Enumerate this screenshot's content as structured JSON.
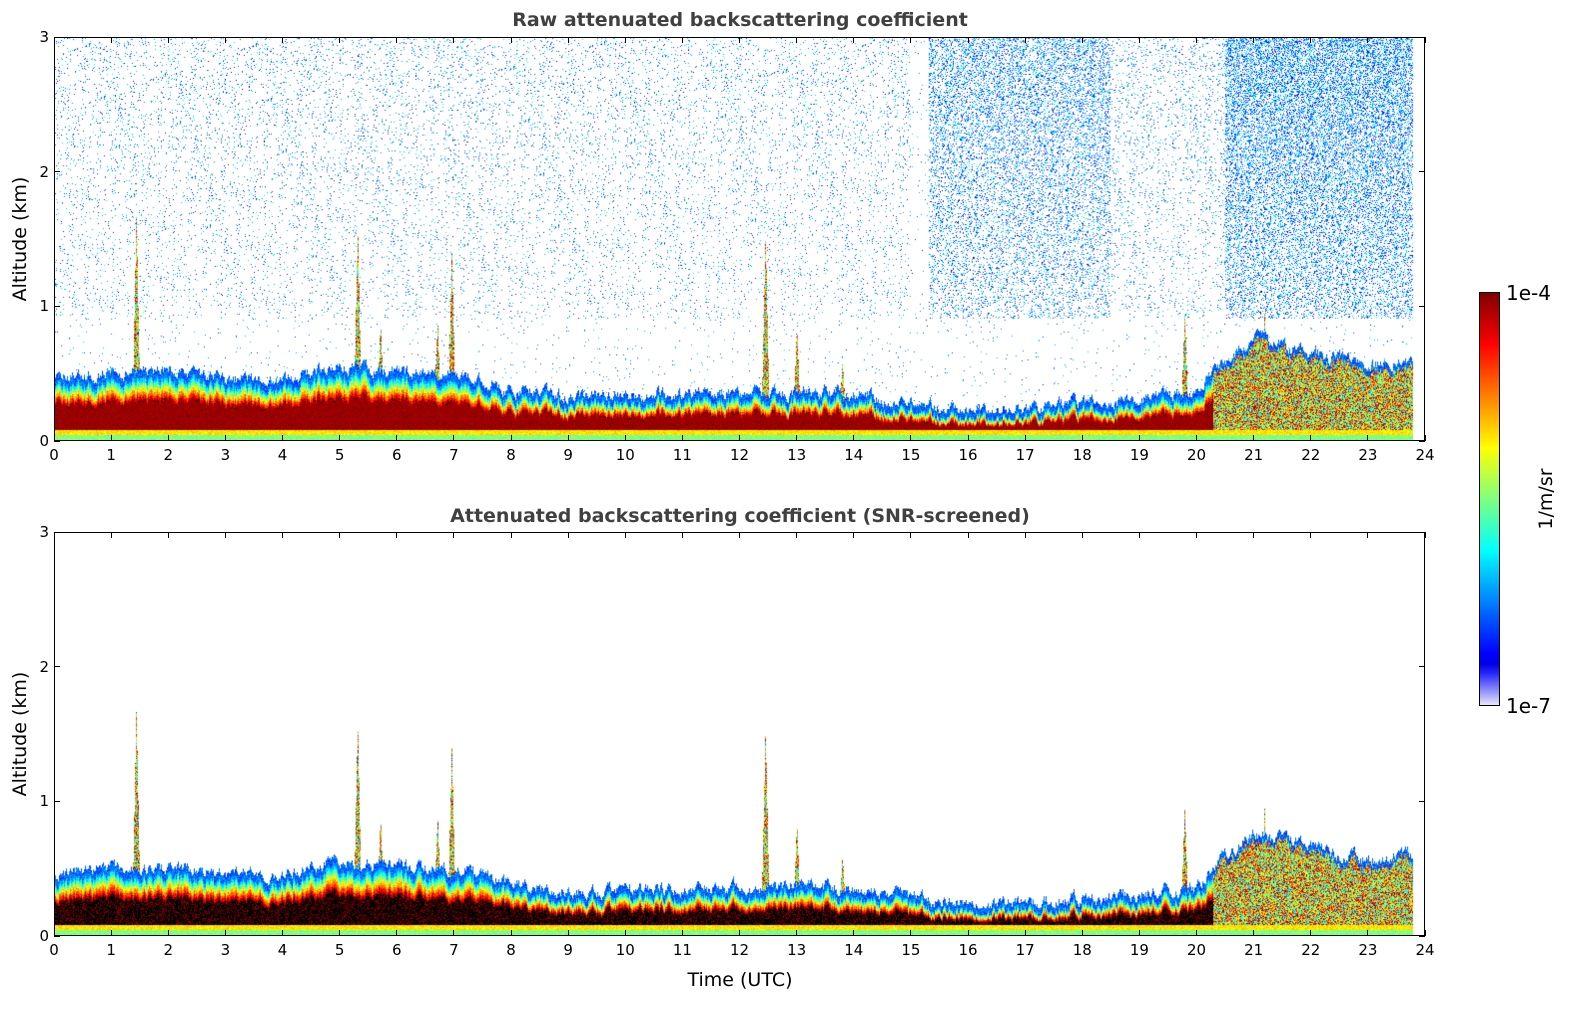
{
  "chart_data": [
    {
      "type": "heatmap",
      "title": "Raw attenuated backscattering coefficient",
      "xlabel": "",
      "ylabel": "Altitude (km)",
      "xlim": [
        0,
        24
      ],
      "ylim": [
        0,
        3
      ],
      "xticks": [
        "0",
        "1",
        "2",
        "3",
        "4",
        "5",
        "6",
        "7",
        "8",
        "9",
        "10",
        "11",
        "12",
        "13",
        "14",
        "15",
        "16",
        "17",
        "18",
        "19",
        "20",
        "21",
        "22",
        "23",
        "24"
      ],
      "yticks": [
        "0",
        "1",
        "2",
        "3"
      ],
      "screened": false
    },
    {
      "type": "heatmap",
      "title": "Attenuated backscattering coefficient (SNR-screened)",
      "xlabel": "Time (UTC)",
      "ylabel": "Altitude (km)",
      "xlim": [
        0,
        24
      ],
      "ylim": [
        0,
        3
      ],
      "xticks": [
        "0",
        "1",
        "2",
        "3",
        "4",
        "5",
        "6",
        "7",
        "8",
        "9",
        "10",
        "11",
        "12",
        "13",
        "14",
        "15",
        "16",
        "17",
        "18",
        "19",
        "20",
        "21",
        "22",
        "23",
        "24"
      ],
      "yticks": [
        "0",
        "1",
        "2",
        "3"
      ],
      "screened": true
    }
  ],
  "aerosol_layer": {
    "time_h": [
      0,
      1,
      2,
      3,
      4,
      5,
      6,
      7,
      8,
      9,
      10,
      11,
      12,
      13,
      14,
      15,
      16,
      17,
      18,
      19,
      20,
      20.5,
      21,
      22,
      23,
      23.8
    ],
    "top_km": [
      0.4,
      0.45,
      0.45,
      0.4,
      0.4,
      0.5,
      0.45,
      0.45,
      0.32,
      0.28,
      0.28,
      0.3,
      0.3,
      0.3,
      0.3,
      0.22,
      0.18,
      0.18,
      0.22,
      0.25,
      0.3,
      0.55,
      0.7,
      0.6,
      0.5,
      0.55
    ],
    "data_end_h": 23.8,
    "plumes": [
      {
        "t": 1.42,
        "top": 1.7
      },
      {
        "t": 5.3,
        "top": 1.6
      },
      {
        "t": 5.7,
        "top": 0.9
      },
      {
        "t": 6.7,
        "top": 0.9
      },
      {
        "t": 6.95,
        "top": 1.4
      },
      {
        "t": 12.45,
        "top": 1.55
      },
      {
        "t": 13.0,
        "top": 0.85
      },
      {
        "t": 13.8,
        "top": 0.6
      },
      {
        "t": 19.8,
        "top": 0.95
      },
      {
        "t": 21.2,
        "top": 0.95
      }
    ],
    "noise_regions": [
      {
        "from": 0,
        "to": 15,
        "density": 0.04
      },
      {
        "from": 15.3,
        "to": 18.5,
        "density": 0.2
      },
      {
        "from": 18.5,
        "to": 20.5,
        "density": 0.05
      },
      {
        "from": 20.5,
        "to": 23.8,
        "density": 0.3
      }
    ]
  },
  "colorbar": {
    "label": "1/m/sr",
    "max_label": "1e-4",
    "min_label": "1e-7",
    "log_min": -7,
    "log_max": -4
  }
}
